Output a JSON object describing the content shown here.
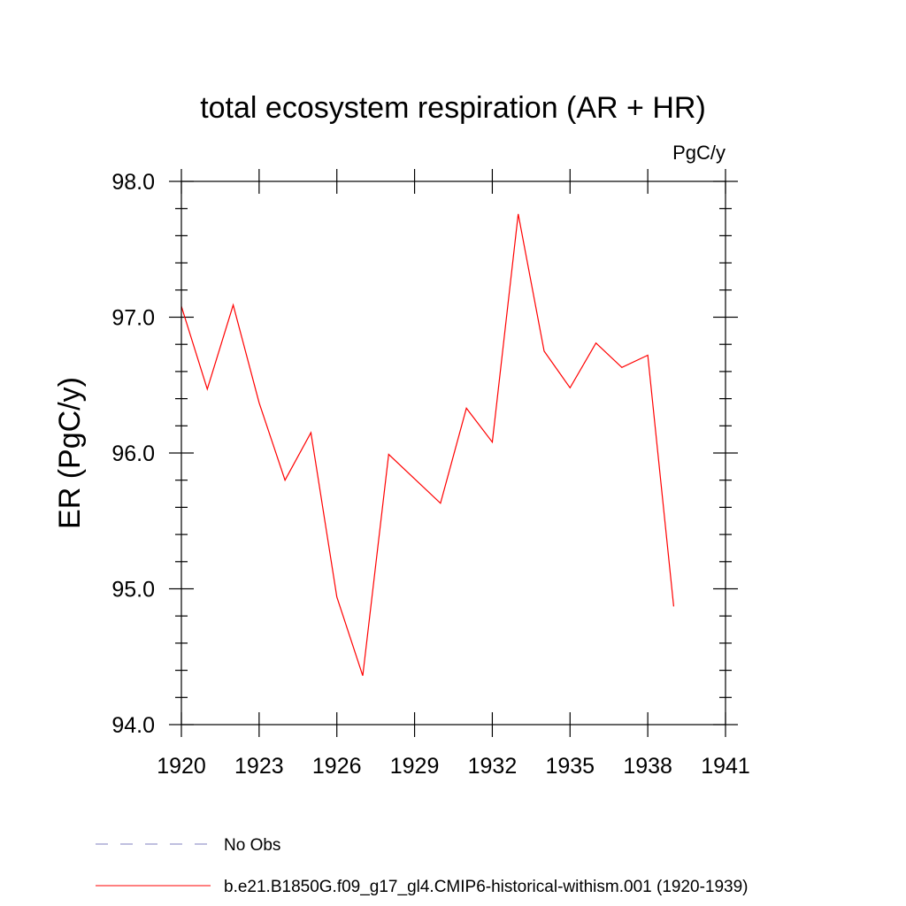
{
  "chart_data": {
    "type": "line",
    "title": "total ecosystem respiration (AR + HR)",
    "units_label": "PgC/y",
    "ylabel": "ER  (PgC/y)",
    "xlabel": "",
    "xlim": [
      1920,
      1941
    ],
    "ylim": [
      94.0,
      98.0
    ],
    "x_ticks": [
      1920,
      1923,
      1926,
      1929,
      1932,
      1935,
      1938,
      1941
    ],
    "x_tick_labels": [
      "1920",
      "1923",
      "1926",
      "1929",
      "1932",
      "1935",
      "1938",
      "1941"
    ],
    "y_ticks": [
      94.0,
      95.0,
      96.0,
      97.0,
      98.0
    ],
    "y_tick_labels": [
      "94.0",
      "95.0",
      "96.0",
      "97.0",
      "98.0"
    ],
    "grid": false,
    "legend_placement": "bottom-left, below plot",
    "series": [
      {
        "name": "b.e21.B1850G.f09_g17_gl4.CMIP6-historical-withism.001 (1920-1939)",
        "color": "#ff0000",
        "style": "solid",
        "x": [
          1920,
          1921,
          1922,
          1923,
          1924,
          1925,
          1926,
          1927,
          1928,
          1929,
          1930,
          1931,
          1932,
          1933,
          1934,
          1935,
          1936,
          1937,
          1938,
          1939
        ],
        "y": [
          97.08,
          96.47,
          97.09,
          96.37,
          95.8,
          96.15,
          94.94,
          94.36,
          95.99,
          95.81,
          95.63,
          96.33,
          96.08,
          97.76,
          96.75,
          96.48,
          96.81,
          96.63,
          96.72,
          94.87
        ]
      }
    ],
    "legend": [
      {
        "label": "No Obs",
        "color": "#7f7fbf",
        "style": "dashed"
      },
      {
        "label": "b.e21.B1850G.f09_g17_gl4.CMIP6-historical-withism.001 (1920-1939)",
        "color": "#ff0000",
        "style": "solid"
      }
    ]
  }
}
